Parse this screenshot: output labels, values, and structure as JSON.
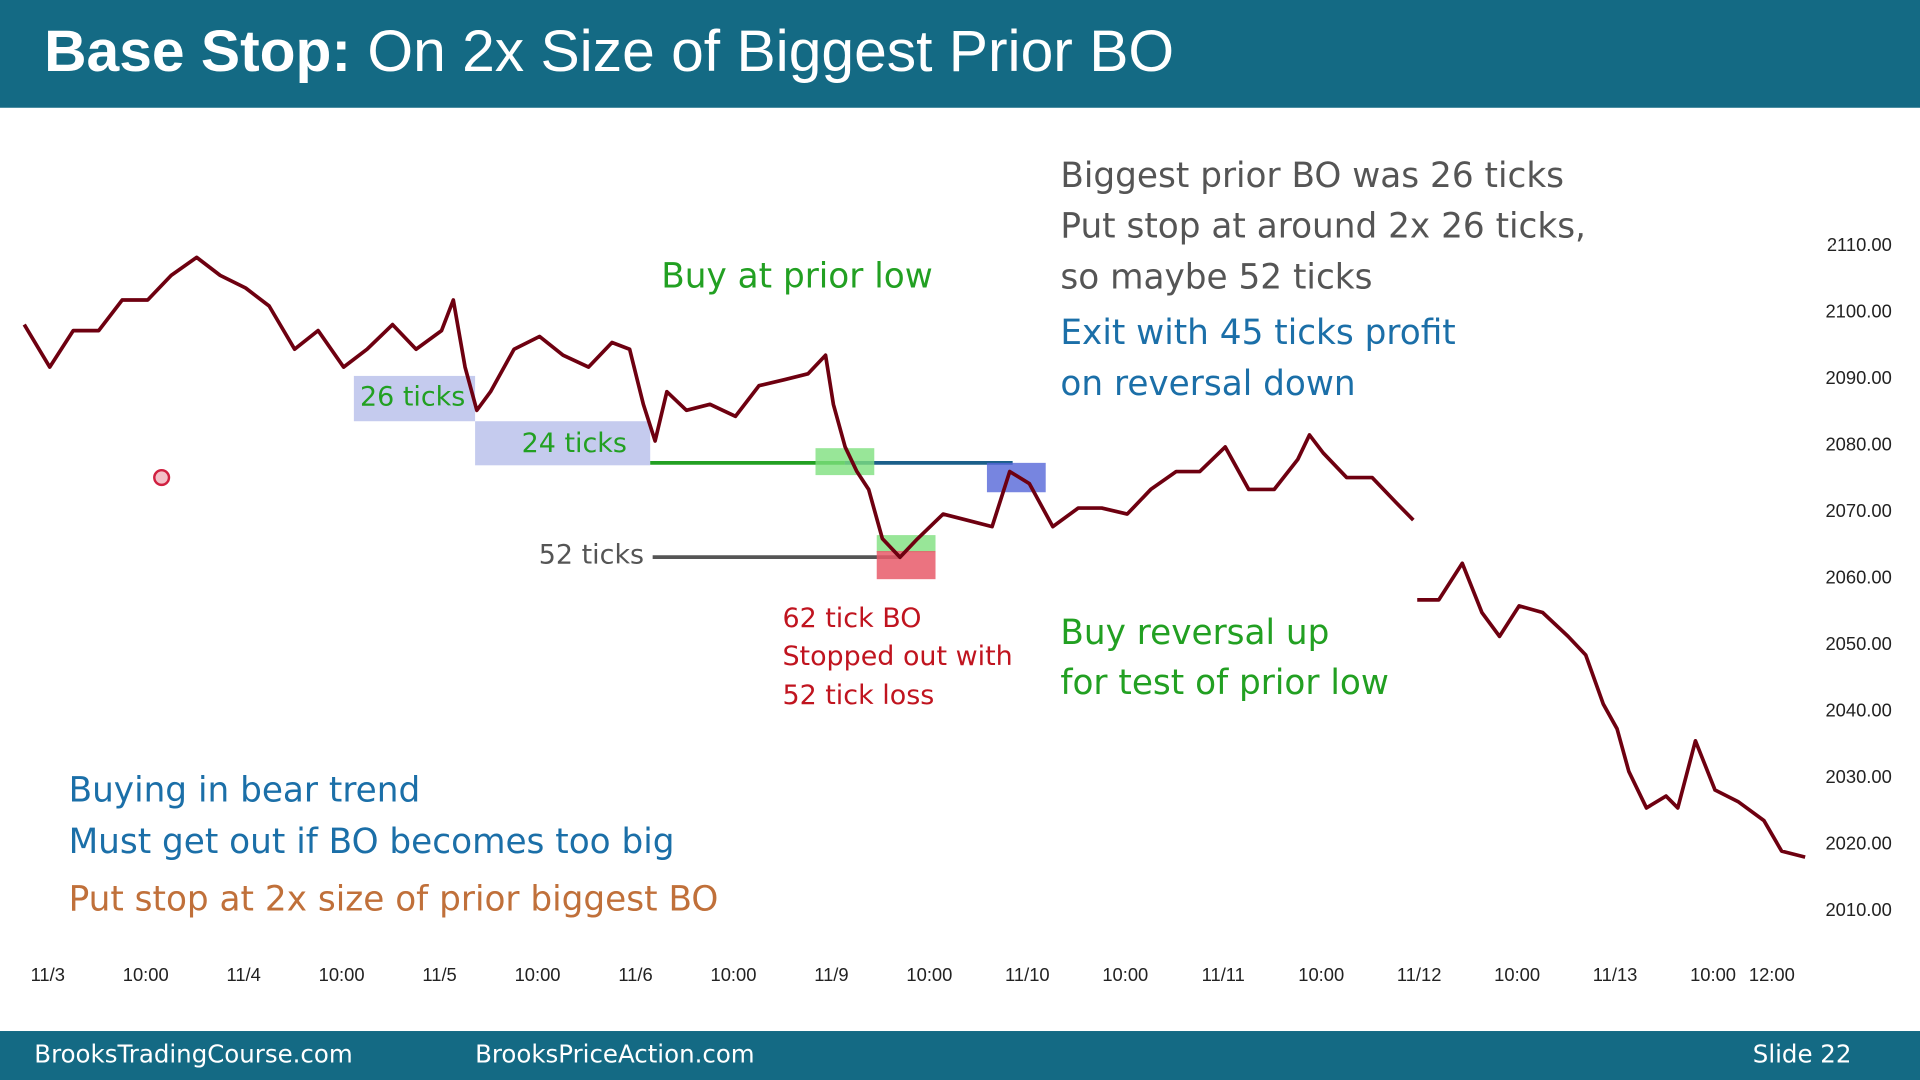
{
  "header": {
    "title_bold": "Base Stop:",
    "title_rest": "On 2x Size of Biggest Prior BO"
  },
  "chart_data": {
    "type": "line",
    "color": "#6e0010",
    "x": [
      -0.12,
      0.01,
      0.13,
      0.26,
      0.38,
      0.51,
      0.63,
      0.76,
      0.88,
      1.01,
      1.13,
      1.26,
      1.38,
      1.51,
      1.63,
      1.76,
      1.88,
      2.01,
      2.07,
      2.13,
      2.19,
      2.26,
      2.38,
      2.51,
      2.63,
      2.76,
      2.88,
      2.97,
      3.04,
      3.1,
      3.16,
      3.26,
      3.38,
      3.51,
      3.63,
      3.76,
      3.88,
      3.97,
      4.01,
      4.07,
      4.13,
      4.19,
      4.26,
      4.35,
      4.44,
      4.57,
      4.69,
      4.82,
      4.91,
      5.01,
      5.13,
      5.26,
      5.38,
      5.51,
      5.63,
      5.76,
      5.88,
      6.01,
      6.13,
      6.26,
      6.38,
      6.44,
      6.51,
      6.63,
      6.76,
      6.88,
      6.97,
      6.98,
      6.99,
      7.1,
      7.22,
      7.32,
      7.41,
      7.51,
      7.63,
      7.76,
      7.85,
      7.94,
      8.01,
      8.07,
      8.16,
      8.26,
      8.32,
      8.41,
      8.51,
      8.63,
      8.76,
      8.85,
      8.97
    ],
    "values": [
      2098.2,
      2091.8,
      2097.3,
      2097.3,
      2101.9,
      2101.9,
      2105.6,
      2108.3,
      2105.6,
      2103.7,
      2101.0,
      2094.5,
      2097.3,
      2091.8,
      2094.5,
      2098.2,
      2094.5,
      2097.3,
      2101.9,
      2091.8,
      2085.3,
      2088.1,
      2094.5,
      2096.4,
      2093.6,
      2091.8,
      2095.5,
      2094.5,
      2086.2,
      2080.7,
      2088.1,
      2085.3,
      2086.2,
      2084.4,
      2089.0,
      2089.9,
      2090.8,
      2093.6,
      2086.2,
      2079.8,
      2076.1,
      2073.4,
      2066.0,
      2063.2,
      2066.0,
      2069.7,
      2068.8,
      2067.8,
      2076.1,
      2074.3,
      2067.8,
      2070.6,
      2070.6,
      2069.7,
      2073.4,
      2076.1,
      2076.1,
      2079.8,
      2073.4,
      2073.4,
      2077.9,
      2081.6,
      2078.9,
      2075.2,
      2075.2,
      2071.5,
      2068.8,
      null,
      2056.8,
      2056.8,
      2062.3,
      2054.9,
      2051.3,
      2055.9,
      2054.9,
      2051.3,
      2048.5,
      2041.1,
      2037.4,
      2031.0,
      2025.5,
      2027.3,
      2025.5,
      2035.6,
      2028.2,
      2026.4,
      2023.6,
      2019.0,
      2018.1
    ],
    "xlim": [
      -0.15,
      9.1
    ],
    "ylim": [
      2005,
      2115
    ],
    "yticks": [
      {
        "value": 2010,
        "label": "2010.00"
      },
      {
        "value": 2020,
        "label": "2020.00"
      },
      {
        "value": 2030,
        "label": "2030.00"
      },
      {
        "value": 2040,
        "label": "2040.00"
      },
      {
        "value": 2050,
        "label": "2050.00"
      },
      {
        "value": 2060,
        "label": "2060.00"
      },
      {
        "value": 2070,
        "label": "2070.00"
      },
      {
        "value": 2080,
        "label": "2080.00"
      },
      {
        "value": 2090,
        "label": "2090.00"
      },
      {
        "value": 2100,
        "label": "2100.00"
      },
      {
        "value": 2110,
        "label": "2110.00"
      }
    ],
    "xticks": [
      {
        "value": 0,
        "label": "11/3"
      },
      {
        "value": 0.5,
        "label": "10:00"
      },
      {
        "value": 1,
        "label": "11/4"
      },
      {
        "value": 1.5,
        "label": "10:00"
      },
      {
        "value": 2,
        "label": "11/5"
      },
      {
        "value": 2.5,
        "label": "10:00"
      },
      {
        "value": 3,
        "label": "11/6"
      },
      {
        "value": 3.5,
        "label": "10:00"
      },
      {
        "value": 4,
        "label": "11/9"
      },
      {
        "value": 4.5,
        "label": "10:00"
      },
      {
        "value": 5,
        "label": "11/10"
      },
      {
        "value": 5.5,
        "label": "10:00"
      },
      {
        "value": 6,
        "label": "11/11"
      },
      {
        "value": 6.5,
        "label": "10:00"
      },
      {
        "value": 7,
        "label": "11/12"
      },
      {
        "value": 7.5,
        "label": "10:00"
      },
      {
        "value": 8,
        "label": "11/13"
      },
      {
        "value": 8.5,
        "label": "10:00"
      },
      {
        "value": 8.8,
        "label": "12:00"
      }
    ]
  },
  "annotations": {
    "ticks26": "26 ticks",
    "ticks24": "24 ticks",
    "ticks52": "52 ticks",
    "buy_prior_low": "Buy at prior low",
    "biggest_prior": [
      "Biggest prior BO was 26 ticks",
      "Put stop at around 2x 26 ticks,",
      "so maybe 52 ticks"
    ],
    "exit": [
      "Exit with 45 ticks profit",
      "on reversal down"
    ],
    "stopped": [
      "62 tick BO",
      "Stopped out with",
      "52 tick loss"
    ],
    "buy_reversal": [
      "Buy reversal up",
      "for test of prior low"
    ],
    "notes": [
      "Buying in bear trend",
      "Must get out if BO becomes too big"
    ],
    "stop_note": "Put stop at 2x size of prior biggest BO"
  },
  "footer": {
    "left": "BrooksTradingCourse.com",
    "middle": "BrooksPriceAction.com",
    "slide": "Slide 22"
  }
}
